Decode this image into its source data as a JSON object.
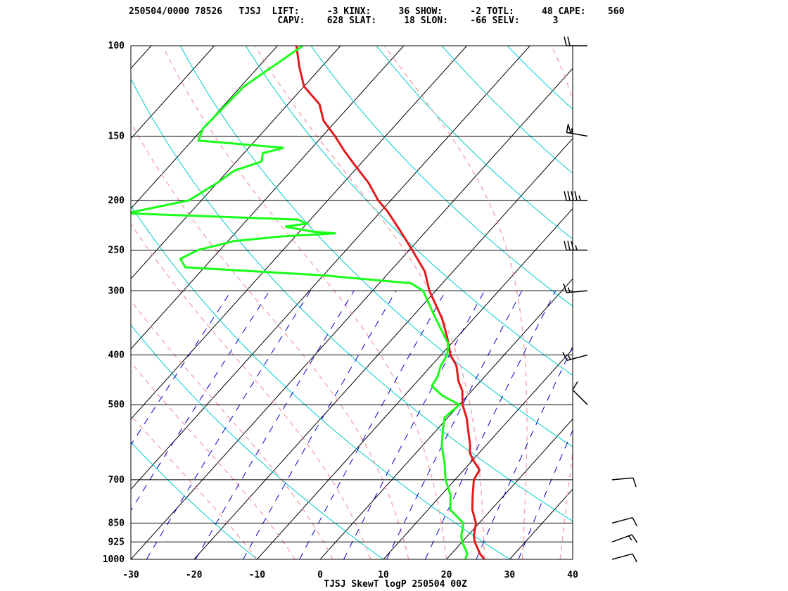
{
  "header": {
    "line1": "250504/0000 78526   TJSJ  LIFT:     -3 KINX:     36 SHOW:     -2 TOTL:     48 CAPE:    560",
    "line2": "                           CAPV:    628 SLAT:     18 SLON:    -66 SELV:      3"
  },
  "chart_data": {
    "type": "line",
    "title": "TJSJ SkewT logP 250504 00Z",
    "xlabel": "",
    "ylabel": "",
    "xlim": [
      -30,
      40
    ],
    "ylim": [
      1000,
      100
    ],
    "log_y": true,
    "skew": true,
    "x_ticks": [
      "-30",
      "-20",
      "-10",
      "0",
      "10",
      "20",
      "30",
      "40"
    ],
    "pressure_levels": [
      100,
      150,
      200,
      250,
      300,
      400,
      500,
      700,
      850,
      925,
      1000
    ],
    "colors": {
      "temperature": "#e41a1c",
      "dewpoint": "#1aff1a",
      "isotherm": "#000000",
      "dry_adiabat": "#00cccc",
      "moist_adiabat": "#f4a0a8",
      "mixing_ratio": "#0000cc"
    },
    "series": [
      {
        "name": "",
        "kind": "temperature",
        "points": [
          [
            1000,
            26.0
          ],
          [
            975,
            24.5
          ],
          [
            925,
            22.0
          ],
          [
            900,
            21.0
          ],
          [
            850,
            19.5
          ],
          [
            800,
            17.0
          ],
          [
            750,
            15.0
          ],
          [
            700,
            13.0
          ],
          [
            670,
            12.5
          ],
          [
            640,
            10.0
          ],
          [
            620,
            8.5
          ],
          [
            600,
            7.5
          ],
          [
            560,
            5.0
          ],
          [
            530,
            3.0
          ],
          [
            500,
            0.5
          ],
          [
            470,
            -1.5
          ],
          [
            450,
            -3.5
          ],
          [
            420,
            -6.0
          ],
          [
            400,
            -8.5
          ],
          [
            370,
            -11.5
          ],
          [
            340,
            -15.0
          ],
          [
            300,
            -21.0
          ],
          [
            275,
            -24.5
          ],
          [
            250,
            -29.5
          ],
          [
            230,
            -34.0
          ],
          [
            210,
            -39.0
          ],
          [
            200,
            -42.0
          ],
          [
            185,
            -46.0
          ],
          [
            170,
            -51.0
          ],
          [
            160,
            -54.5
          ],
          [
            150,
            -58.0
          ],
          [
            140,
            -62.0
          ],
          [
            130,
            -65.0
          ],
          [
            120,
            -70.0
          ],
          [
            110,
            -73.5
          ],
          [
            100,
            -77.0
          ]
        ]
      },
      {
        "name": "",
        "kind": "dewpoint",
        "points": [
          [
            1000,
            23.0
          ],
          [
            975,
            22.5
          ],
          [
            925,
            20.0
          ],
          [
            900,
            19.0
          ],
          [
            850,
            17.5
          ],
          [
            800,
            13.5
          ],
          [
            750,
            11.5
          ],
          [
            700,
            8.5
          ],
          [
            650,
            6.0
          ],
          [
            600,
            3.0
          ],
          [
            560,
            1.0
          ],
          [
            530,
            -0.5
          ],
          [
            500,
            0.0
          ],
          [
            480,
            -4.0
          ],
          [
            460,
            -7.0
          ],
          [
            440,
            -7.5
          ],
          [
            420,
            -8.5
          ],
          [
            400,
            -9.0
          ],
          [
            380,
            -10.5
          ],
          [
            340,
            -16.0
          ],
          [
            300,
            -22.0
          ],
          [
            290,
            -25.0
          ],
          [
            280,
            -40.0
          ],
          [
            270,
            -63.0
          ],
          [
            260,
            -65.0
          ],
          [
            250,
            -63.5
          ],
          [
            240,
            -59.0
          ],
          [
            235,
            -52.0
          ],
          [
            232,
            -44.0
          ],
          [
            230,
            -48.0
          ],
          [
            225,
            -53.0
          ],
          [
            222,
            -50.0
          ],
          [
            218,
            -52.0
          ],
          [
            212,
            -80.0
          ],
          [
            200,
            -72.0
          ],
          [
            185,
            -70.0
          ],
          [
            175,
            -69.0
          ],
          [
            168,
            -66.0
          ],
          [
            162,
            -67.0
          ],
          [
            158,
            -64.5
          ],
          [
            153,
            -79.0
          ],
          [
            145,
            -80.0
          ],
          [
            120,
            -79.5
          ],
          [
            100,
            -76.0
          ]
        ]
      }
    ],
    "wind_barbs": [
      {
        "p": 100,
        "dir": 270,
        "spd": 20
      },
      {
        "p": 150,
        "dir": 280,
        "spd": 55
      },
      {
        "p": 200,
        "dir": 270,
        "spd": 45
      },
      {
        "p": 250,
        "dir": 270,
        "spd": 35
      },
      {
        "p": 300,
        "dir": 265,
        "spd": 15
      },
      {
        "p": 400,
        "dir": 255,
        "spd": 15
      },
      {
        "p": 500,
        "dir": 315,
        "spd": 10
      },
      {
        "p": 700,
        "dir": 85,
        "spd": 10
      },
      {
        "p": 850,
        "dir": 75,
        "spd": 10
      },
      {
        "p": 925,
        "dir": 70,
        "spd": 15
      },
      {
        "p": 1000,
        "dir": 75,
        "spd": 10
      }
    ]
  }
}
